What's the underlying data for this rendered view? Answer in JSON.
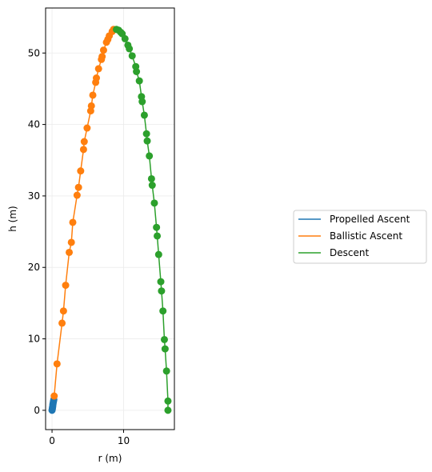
{
  "chart_data": {
    "type": "scatter",
    "title": "",
    "xlabel": "r (m)",
    "ylabel": "h (m)",
    "xlim": [
      -0.9,
      17.1
    ],
    "ylim": [
      -2.7,
      56.3
    ],
    "xticks": [
      0,
      10
    ],
    "yticks": [
      0,
      10,
      20,
      30,
      40,
      50
    ],
    "grid": true,
    "legend_position": "right",
    "series": [
      {
        "name": "Propelled Ascent",
        "color": "#1f77b4",
        "points": [
          [
            0.0,
            0.0
          ],
          [
            0.03,
            0.15
          ],
          [
            0.06,
            0.35
          ],
          [
            0.09,
            0.55
          ],
          [
            0.12,
            0.8
          ],
          [
            0.15,
            1.0
          ],
          [
            0.2,
            1.25
          ],
          [
            0.25,
            1.5
          ]
        ]
      },
      {
        "name": "Ballistic Ascent",
        "color": "#ff7f0e",
        "points": [
          [
            0.3,
            2.0
          ],
          [
            0.7,
            6.5
          ],
          [
            1.4,
            12.2
          ],
          [
            1.6,
            13.9
          ],
          [
            1.9,
            17.5
          ],
          [
            2.4,
            22.1
          ],
          [
            2.7,
            23.5
          ],
          [
            2.9,
            26.3
          ],
          [
            3.5,
            30.1
          ],
          [
            3.7,
            31.2
          ],
          [
            4.0,
            33.5
          ],
          [
            4.4,
            36.5
          ],
          [
            4.5,
            37.6
          ],
          [
            4.9,
            39.5
          ],
          [
            5.4,
            41.9
          ],
          [
            5.5,
            42.6
          ],
          [
            5.7,
            44.1
          ],
          [
            6.1,
            45.9
          ],
          [
            6.2,
            46.5
          ],
          [
            6.5,
            47.8
          ],
          [
            6.9,
            49.1
          ],
          [
            7.0,
            49.5
          ],
          [
            7.2,
            50.4
          ],
          [
            7.6,
            51.5
          ],
          [
            7.8,
            51.9
          ],
          [
            8.0,
            52.4
          ],
          [
            8.4,
            53.0
          ],
          [
            8.6,
            53.3
          ]
        ]
      },
      {
        "name": "Descent",
        "color": "#2ca02c",
        "points": [
          [
            9.0,
            53.3
          ],
          [
            9.3,
            53.2
          ],
          [
            9.6,
            52.9
          ],
          [
            9.8,
            52.7
          ],
          [
            10.2,
            52.0
          ],
          [
            10.6,
            51.1
          ],
          [
            10.8,
            50.6
          ],
          [
            11.2,
            49.6
          ],
          [
            11.7,
            48.1
          ],
          [
            11.8,
            47.4
          ],
          [
            12.2,
            46.1
          ],
          [
            12.5,
            43.9
          ],
          [
            12.6,
            43.2
          ],
          [
            12.9,
            41.3
          ],
          [
            13.2,
            38.7
          ],
          [
            13.3,
            37.7
          ],
          [
            13.6,
            35.6
          ],
          [
            13.9,
            32.4
          ],
          [
            14.0,
            31.5
          ],
          [
            14.3,
            29.0
          ],
          [
            14.6,
            25.6
          ],
          [
            14.7,
            24.4
          ],
          [
            14.9,
            21.8
          ],
          [
            15.2,
            18.0
          ],
          [
            15.3,
            16.7
          ],
          [
            15.5,
            13.9
          ],
          [
            15.7,
            9.9
          ],
          [
            15.8,
            8.6
          ],
          [
            16.0,
            5.5
          ],
          [
            16.2,
            1.3
          ],
          [
            16.2,
            0.0
          ]
        ]
      }
    ]
  }
}
